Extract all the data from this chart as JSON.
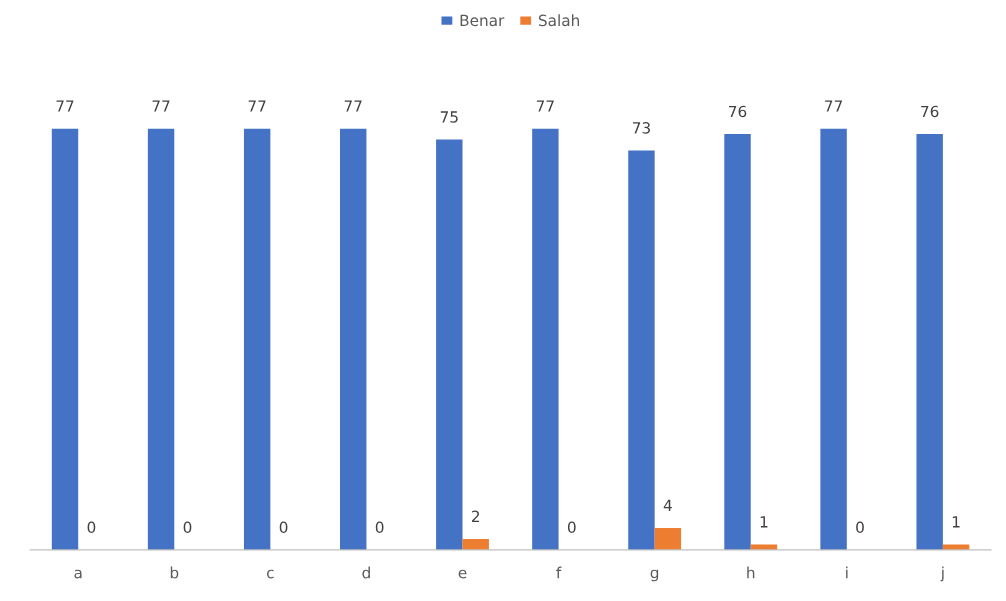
{
  "chart_data": {
    "type": "bar",
    "categories": [
      "a",
      "b",
      "c",
      "d",
      "e",
      "f",
      "g",
      "h",
      "i",
      "j"
    ],
    "series": [
      {
        "name": "Benar",
        "color": "#4472c4",
        "values": [
          77,
          77,
          77,
          77,
          75,
          77,
          73,
          76,
          77,
          76
        ]
      },
      {
        "name": "Salah",
        "color": "#ed7d31",
        "values": [
          0,
          0,
          0,
          0,
          2,
          0,
          4,
          1,
          0,
          1
        ]
      }
    ],
    "data_labels": true,
    "legend": "top",
    "grid": false
  }
}
